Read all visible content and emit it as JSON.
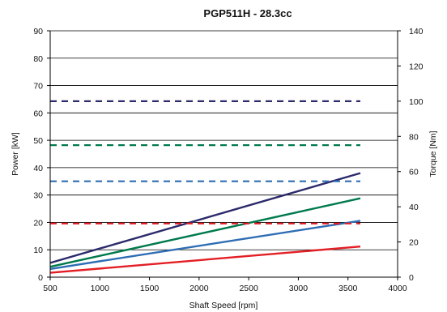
{
  "chart_data": {
    "type": "line",
    "title": "PGP511H - 28.3cc",
    "xlabel": "Shaft Speed [rpm]",
    "ylabel": "Power [kW]",
    "y2label": "Torque [Nm]",
    "xlim": [
      500,
      4000
    ],
    "ylim": [
      0,
      90
    ],
    "y2lim": [
      0,
      140
    ],
    "x_ticks": [
      500,
      1000,
      1500,
      2000,
      2500,
      3000,
      3500,
      4000
    ],
    "y_ticks": [
      0,
      10,
      20,
      30,
      40,
      50,
      60,
      70,
      80,
      90
    ],
    "y2_ticks": [
      0,
      20,
      40,
      60,
      80,
      100,
      120,
      140
    ],
    "grid": "horizontal",
    "series": [
      {
        "kind": "power",
        "axis": "left",
        "color": "#e31e24",
        "style": "solid",
        "x": [
          500,
          3625
        ],
        "y": [
          1.6,
          11.2
        ]
      },
      {
        "kind": "power",
        "axis": "left",
        "color": "#2e6db4",
        "style": "solid",
        "x": [
          500,
          3625
        ],
        "y": [
          3.0,
          20.6
        ]
      },
      {
        "kind": "power",
        "axis": "left",
        "color": "#007a4d",
        "style": "solid",
        "x": [
          500,
          3625
        ],
        "y": [
          3.8,
          28.8
        ]
      },
      {
        "kind": "power",
        "axis": "left",
        "color": "#2b2a6b",
        "style": "solid",
        "x": [
          500,
          3625
        ],
        "y": [
          5.2,
          38.0
        ]
      },
      {
        "kind": "torque",
        "axis": "right",
        "color": "#e31e24",
        "style": "dashed",
        "x": [
          500,
          3625
        ],
        "y": [
          30.5,
          30.5
        ]
      },
      {
        "kind": "torque",
        "axis": "right",
        "color": "#2e6db4",
        "style": "dashed",
        "x": [
          500,
          3625
        ],
        "y": [
          54.5,
          54.5
        ]
      },
      {
        "kind": "torque",
        "axis": "right",
        "color": "#007a4d",
        "style": "dashed",
        "x": [
          500,
          3625
        ],
        "y": [
          75.0,
          75.0
        ]
      },
      {
        "kind": "torque",
        "axis": "right",
        "color": "#2b2a6b",
        "style": "dashed",
        "x": [
          500,
          3625
        ],
        "y": [
          100.0,
          100.0
        ]
      }
    ]
  }
}
